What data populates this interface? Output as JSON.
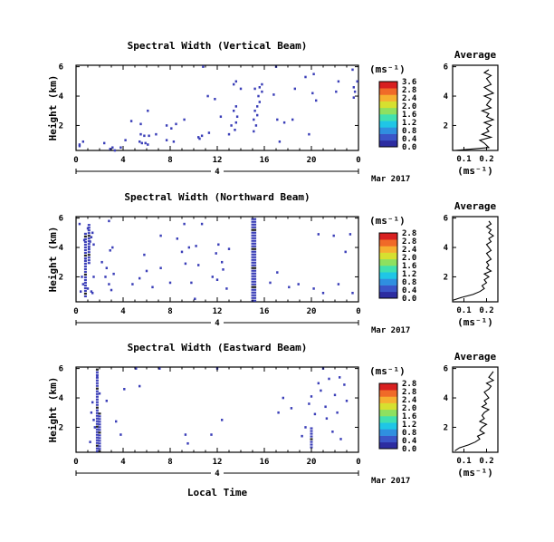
{
  "chart_data": [
    {
      "type": "heatmap",
      "title": "Spectral Width (Vertical Beam)",
      "ylabel": "Height (km)",
      "xlabel": "",
      "x_ticks": [
        "0",
        "4",
        "8",
        "12",
        "16",
        "20",
        "0"
      ],
      "y_ticks": [
        "2",
        "4",
        "6"
      ],
      "date_label": "4",
      "month_label": "Mar 2017",
      "xlim_hours": [
        0,
        24
      ],
      "ylim_km": [
        0.3,
        6.1
      ],
      "colorbar": {
        "unit": "(ms⁻¹)",
        "ticks": [
          "0.0",
          "0.4",
          "0.8",
          "1.2",
          "1.6",
          "2.0",
          "2.4",
          "2.8"
        ],
        "top_label": "3.6"
      },
      "pixels": [
        [
          0.3,
          0.6
        ],
        [
          0.3,
          0.7
        ],
        [
          0.6,
          0.9
        ],
        [
          2.4,
          0.8
        ],
        [
          2.9,
          0.4
        ],
        [
          3.1,
          0.5
        ],
        [
          3.3,
          0.3
        ],
        [
          5.4,
          0.9
        ],
        [
          5.6,
          0.8
        ],
        [
          5.9,
          0.8
        ],
        [
          6.1,
          0.7
        ],
        [
          5.5,
          1.4
        ],
        [
          5.8,
          1.3
        ],
        [
          6.2,
          1.3
        ],
        [
          5.5,
          2.1
        ],
        [
          6.8,
          1.4
        ],
        [
          7.7,
          1.0
        ],
        [
          8.1,
          1.8
        ],
        [
          8.3,
          0.9
        ],
        [
          9.2,
          2.4
        ],
        [
          10.4,
          1.2
        ],
        [
          10.5,
          1.1
        ],
        [
          10.7,
          1.3
        ],
        [
          6.1,
          3.0
        ],
        [
          8.5,
          2.1
        ],
        [
          4.7,
          2.3
        ],
        [
          11.2,
          4.0
        ],
        [
          11.8,
          3.8
        ],
        [
          12.3,
          2.6
        ],
        [
          13.0,
          1.4
        ],
        [
          13.5,
          1.7
        ],
        [
          13.2,
          2.0
        ],
        [
          13.6,
          2.2
        ],
        [
          13.7,
          2.6
        ],
        [
          13.4,
          3.0
        ],
        [
          13.6,
          3.3
        ],
        [
          15.1,
          1.6
        ],
        [
          15.3,
          2.0
        ],
        [
          15.1,
          2.4
        ],
        [
          15.4,
          2.7
        ],
        [
          15.2,
          3.0
        ],
        [
          15.4,
          3.3
        ],
        [
          15.6,
          3.6
        ],
        [
          15.5,
          4.0
        ],
        [
          15.8,
          4.3
        ],
        [
          15.6,
          4.6
        ],
        [
          15.8,
          4.8
        ],
        [
          13.6,
          5.0
        ],
        [
          15.2,
          4.5
        ],
        [
          17.1,
          2.4
        ],
        [
          17.7,
          2.2
        ],
        [
          17.3,
          0.9
        ],
        [
          18.6,
          4.5
        ],
        [
          19.8,
          1.4
        ],
        [
          19.5,
          5.3
        ],
        [
          20.2,
          5.5
        ],
        [
          20.4,
          3.7
        ],
        [
          18.4,
          2.4
        ],
        [
          22.1,
          4.3
        ],
        [
          22.3,
          5.0
        ],
        [
          23.6,
          3.9
        ],
        [
          23.7,
          4.3
        ],
        [
          23.6,
          4.6
        ],
        [
          23.9,
          5.0
        ],
        [
          23.5,
          5.8
        ],
        [
          17.0,
          6.0
        ],
        [
          10.8,
          6.0
        ],
        [
          14.0,
          4.5
        ],
        [
          20.1,
          4.2
        ],
        [
          16.8,
          4.1
        ],
        [
          13.4,
          4.8
        ],
        [
          7.7,
          2.0
        ],
        [
          11.3,
          1.5
        ],
        [
          4.2,
          1.0
        ],
        [
          3.8,
          0.5
        ]
      ],
      "average": {
        "title": "Average",
        "xlabel": "(ms⁻¹)",
        "x_ticks": [
          "0.1",
          "0.2"
        ],
        "y_ticks": [
          "2",
          "4",
          "6"
        ],
        "xlim": [
          0.05,
          0.25
        ],
        "heights": [
          0.3,
          0.5,
          0.8,
          1.0,
          1.2,
          1.4,
          1.6,
          1.8,
          2.0,
          2.2,
          2.4,
          2.6,
          2.8,
          3.0,
          3.2,
          3.4,
          3.6,
          3.8,
          4.0,
          4.2,
          4.4,
          4.6,
          4.8,
          5.0,
          5.2,
          5.4,
          5.6,
          5.8
        ],
        "values": [
          0.06,
          0.21,
          0.19,
          0.17,
          0.22,
          0.18,
          0.21,
          0.2,
          0.22,
          0.19,
          0.23,
          0.2,
          0.21,
          0.18,
          0.22,
          0.2,
          0.21,
          0.22,
          0.19,
          0.23,
          0.21,
          0.19,
          0.22,
          0.21,
          0.2,
          0.22,
          0.19,
          0.21
        ]
      }
    },
    {
      "type": "heatmap",
      "title": "Spectral Width (Northward Beam)",
      "ylabel": "Height (km)",
      "xlabel": "",
      "x_ticks": [
        "0",
        "4",
        "8",
        "12",
        "16",
        "20",
        "0"
      ],
      "y_ticks": [
        "2",
        "4",
        "6"
      ],
      "date_label": "4",
      "month_label": "Mar 2017",
      "xlim_hours": [
        0,
        24
      ],
      "ylim_km": [
        0.3,
        6.1
      ],
      "colorbar": {
        "unit": "(ms⁻¹)",
        "ticks": [
          "0.0",
          "0.4",
          "0.8",
          "1.2",
          "1.6",
          "2.0",
          "2.4",
          "2.8"
        ],
        "top_label": "2.8"
      },
      "pixels": [
        [
          0.4,
          1.0
        ],
        [
          0.6,
          1.5
        ],
        [
          0.5,
          2.0
        ],
        [
          0.8,
          3.1
        ],
        [
          0.3,
          5.6
        ],
        [
          0.7,
          4.5
        ],
        [
          1.0,
          5.3
        ],
        [
          1.1,
          3.9
        ],
        [
          1.2,
          4.4
        ],
        [
          1.4,
          5.0
        ],
        [
          1.3,
          4.7
        ],
        [
          1.5,
          4.2
        ],
        [
          1.0,
          1.2
        ],
        [
          1.3,
          1.0
        ],
        [
          1.5,
          2.0
        ],
        [
          1.4,
          0.9
        ],
        [
          2.2,
          3.0
        ],
        [
          2.5,
          2.0
        ],
        [
          2.8,
          1.5
        ],
        [
          3.0,
          1.1
        ],
        [
          3.1,
          4.0
        ],
        [
          2.6,
          2.6
        ],
        [
          2.9,
          3.8
        ],
        [
          3.2,
          2.2
        ],
        [
          4.8,
          1.5
        ],
        [
          5.4,
          1.9
        ],
        [
          5.8,
          3.5
        ],
        [
          6.0,
          2.4
        ],
        [
          6.5,
          1.3
        ],
        [
          7.2,
          2.6
        ],
        [
          8.0,
          1.6
        ],
        [
          8.6,
          4.6
        ],
        [
          9.0,
          3.7
        ],
        [
          9.3,
          2.9
        ],
        [
          9.6,
          4.0
        ],
        [
          9.8,
          1.6
        ],
        [
          10.2,
          4.1
        ],
        [
          10.1,
          0.5
        ],
        [
          10.4,
          2.8
        ],
        [
          12.0,
          1.8
        ],
        [
          11.9,
          3.6
        ],
        [
          12.1,
          4.2
        ],
        [
          12.4,
          3.0
        ],
        [
          12.5,
          2.5
        ],
        [
          12.8,
          1.2
        ],
        [
          13.0,
          3.9
        ],
        [
          11.6,
          2.0
        ],
        [
          16.5,
          1.6
        ],
        [
          17.1,
          2.3
        ],
        [
          18.1,
          1.3
        ],
        [
          18.9,
          1.5
        ],
        [
          20.2,
          1.2
        ],
        [
          20.6,
          4.9
        ],
        [
          21.0,
          0.9
        ],
        [
          21.9,
          4.8
        ],
        [
          22.3,
          1.5
        ],
        [
          22.9,
          3.7
        ],
        [
          23.5,
          0.9
        ],
        [
          23.3,
          4.9
        ],
        [
          10.7,
          5.6
        ],
        [
          9.2,
          5.6
        ],
        [
          7.2,
          4.8
        ],
        [
          2.8,
          5.8
        ]
      ],
      "columns": [
        {
          "hour": 15.0,
          "from": 0.3,
          "to": 6.0
        },
        {
          "hour": 15.2,
          "from": 0.3,
          "to": 6.0
        },
        {
          "hour": 0.8,
          "from": 0.6,
          "to": 5.0
        },
        {
          "hour": 1.1,
          "from": 3.0,
          "to": 5.6
        }
      ],
      "average": {
        "title": "Average",
        "xlabel": "(ms⁻¹)",
        "x_ticks": [
          "0.1",
          "0.2"
        ],
        "y_ticks": [
          "2",
          "4",
          "6"
        ],
        "xlim": [
          0.05,
          0.25
        ],
        "heights": [
          0.4,
          0.6,
          0.8,
          1.0,
          1.2,
          1.4,
          1.6,
          1.8,
          2.0,
          2.2,
          2.4,
          2.6,
          2.8,
          3.0,
          3.2,
          3.4,
          3.6,
          3.8,
          4.0,
          4.2,
          4.4,
          4.6,
          4.8,
          5.0,
          5.2,
          5.4,
          5.6,
          5.8
        ],
        "values": [
          0.05,
          0.09,
          0.14,
          0.17,
          0.19,
          0.18,
          0.2,
          0.19,
          0.21,
          0.19,
          0.22,
          0.2,
          0.21,
          0.2,
          0.22,
          0.21,
          0.2,
          0.22,
          0.21,
          0.2,
          0.22,
          0.21,
          0.23,
          0.21,
          0.22,
          0.2,
          0.22,
          0.21
        ]
      }
    },
    {
      "type": "heatmap",
      "title": "Spectral Width (Eastward Beam)",
      "ylabel": "Height (km)",
      "xlabel": "Local Time",
      "x_ticks": [
        "0",
        "4",
        "8",
        "12",
        "16",
        "20",
        "0"
      ],
      "y_ticks": [
        "2",
        "4",
        "6"
      ],
      "date_label": "4",
      "month_label": "Mar 2017",
      "xlim_hours": [
        0,
        24
      ],
      "ylim_km": [
        0.3,
        6.1
      ],
      "colorbar": {
        "unit": "(ms⁻¹)",
        "ticks": [
          "0.0",
          "0.4",
          "0.8",
          "1.2",
          "1.6",
          "2.0",
          "2.4",
          "2.8"
        ],
        "top_label": "2.8"
      },
      "pixels": [
        [
          1.3,
          3.0
        ],
        [
          1.4,
          3.7
        ],
        [
          1.5,
          2.5
        ],
        [
          1.6,
          2.0
        ],
        [
          1.2,
          1.0
        ],
        [
          1.8,
          5.5
        ],
        [
          2.0,
          4.3
        ],
        [
          2.6,
          3.8
        ],
        [
          3.4,
          2.4
        ],
        [
          3.8,
          1.5
        ],
        [
          4.1,
          4.6
        ],
        [
          5.1,
          6.0
        ],
        [
          5.4,
          4.8
        ],
        [
          7.1,
          6.0
        ],
        [
          9.5,
          0.9
        ],
        [
          9.3,
          1.5
        ],
        [
          11.5,
          1.5
        ],
        [
          12.4,
          2.5
        ],
        [
          17.2,
          3.0
        ],
        [
          17.6,
          4.0
        ],
        [
          18.3,
          3.3
        ],
        [
          19.2,
          1.4
        ],
        [
          19.5,
          2.0
        ],
        [
          19.8,
          3.6
        ],
        [
          20.0,
          4.1
        ],
        [
          20.3,
          2.9
        ],
        [
          20.6,
          5.0
        ],
        [
          20.8,
          4.5
        ],
        [
          21.2,
          3.4
        ],
        [
          21.3,
          2.6
        ],
        [
          21.5,
          5.3
        ],
        [
          21.8,
          1.7
        ],
        [
          22.0,
          4.2
        ],
        [
          22.2,
          3.0
        ],
        [
          22.4,
          5.4
        ],
        [
          22.5,
          1.2
        ],
        [
          22.8,
          4.9
        ],
        [
          23.0,
          3.8
        ],
        [
          21.0,
          6.0
        ],
        [
          12.0,
          6.0
        ]
      ],
      "columns": [
        {
          "hour": 1.8,
          "from": 0.3,
          "to": 6.0
        },
        {
          "hour": 2.0,
          "from": 0.3,
          "to": 3.0
        },
        {
          "hour": 20.0,
          "from": 0.6,
          "to": 2.0
        }
      ],
      "average": {
        "title": "Average",
        "xlabel": "(ms⁻¹)",
        "x_ticks": [
          "0.1",
          "0.2"
        ],
        "y_ticks": [
          "2",
          "4",
          "6"
        ],
        "xlim": [
          0.05,
          0.25
        ],
        "heights": [
          0.4,
          0.6,
          0.8,
          1.0,
          1.2,
          1.4,
          1.6,
          1.8,
          2.0,
          2.2,
          2.4,
          2.6,
          2.8,
          3.0,
          3.2,
          3.4,
          3.6,
          3.8,
          4.0,
          4.2,
          4.4,
          4.6,
          4.8,
          5.0,
          5.2,
          5.4,
          5.6,
          5.8
        ],
        "values": [
          0.06,
          0.08,
          0.12,
          0.15,
          0.17,
          0.16,
          0.19,
          0.17,
          0.18,
          0.2,
          0.17,
          0.19,
          0.18,
          0.19,
          0.21,
          0.18,
          0.2,
          0.19,
          0.21,
          0.2,
          0.19,
          0.21,
          0.22,
          0.2,
          0.23,
          0.21,
          0.22,
          0.23
        ]
      }
    }
  ]
}
